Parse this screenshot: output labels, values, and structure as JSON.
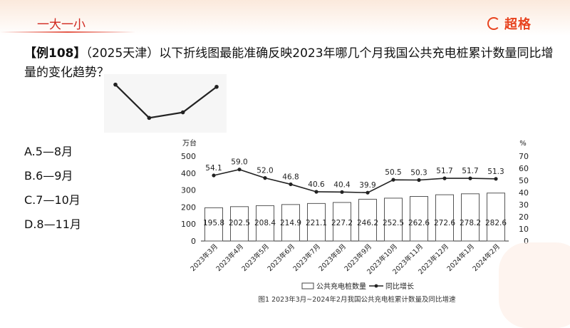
{
  "header": {
    "topic": "一大一小",
    "brand": "超格"
  },
  "question": {
    "tag": "【例108】",
    "text": "（2025天津）以下折线图最能准确反映2023年哪几个月我国公共充电桩累计数量同比增量的变化趋势？"
  },
  "options": [
    {
      "label": "A.5—8月"
    },
    {
      "label": "B.6—9月"
    },
    {
      "label": "C.7—10月"
    },
    {
      "label": "D.8—11月"
    }
  ],
  "sketch_chart": {
    "type": "line",
    "values": [
      3,
      0,
      0.5,
      2.8
    ],
    "ylim": [
      -0.3,
      3.3
    ]
  },
  "chart_data": {
    "type": "bar",
    "title": "图1  2023年3月~2024年2月我国公共充电桩累计数量及同比增速",
    "categories": [
      "2023年3月",
      "2023年4月",
      "2023年5月",
      "2023年6月",
      "2023年7月",
      "2023年8月",
      "2023年9月",
      "2023年10月",
      "2023年11月",
      "2023年12月",
      "2024年1月",
      "2024年2月"
    ],
    "series": [
      {
        "name": "公共充电桩数量",
        "type": "bar",
        "axis": "left",
        "values": [
          195.8,
          202.5,
          208.4,
          214.9,
          221.1,
          227.2,
          246.2,
          252.5,
          262.6,
          272.6,
          278.2,
          282.6
        ]
      },
      {
        "name": "同比增长",
        "type": "line",
        "axis": "right",
        "values": [
          54.1,
          59.0,
          52.0,
          46.8,
          40.6,
          40.4,
          39.9,
          50.5,
          50.3,
          51.7,
          51.7,
          51.3
        ]
      }
    ],
    "ylabel_left": "万台",
    "ylabel_right": "%",
    "ylim_left": [
      0,
      500
    ],
    "yticks_left": [
      "0",
      "100",
      "200",
      "300",
      "400",
      "500"
    ],
    "ylim_right": [
      0,
      70
    ],
    "yticks_right": [
      "0",
      "10",
      "20",
      "30",
      "40",
      "50",
      "60",
      "70"
    ],
    "legend_position": "bottom",
    "grid": false,
    "colors": {
      "bar_fill": "#ffffff",
      "bar_stroke": "#555555",
      "line": "#222222"
    }
  }
}
